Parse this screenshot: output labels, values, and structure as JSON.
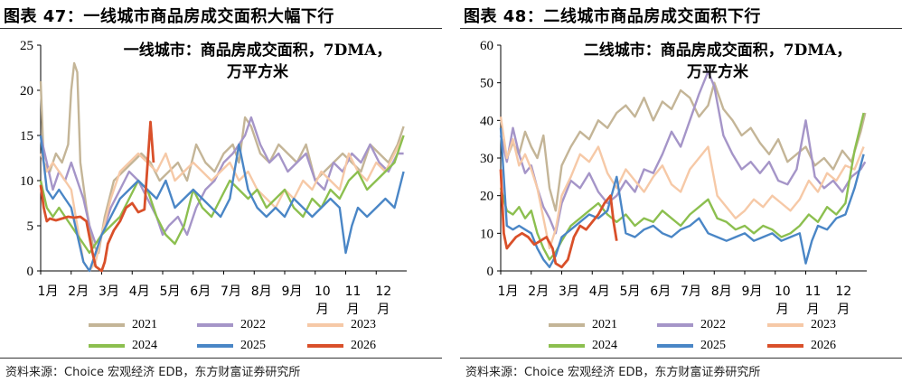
{
  "panels": [
    {
      "figure_title": "图表 47：一线城市商品房成交面积大幅下行",
      "source": "资料来源：Choice 宏观经济 EDB，东方财富证券研究所"
    },
    {
      "figure_title": "图表 48：二线城市商品房成交面积下行",
      "source": "资料来源：Choice 宏观经济 EDB，东方财富证券研究所"
    }
  ],
  "chart_data": [
    {
      "type": "line",
      "title": "一线城市：商品房成交面积，7DMA，",
      "subtitle": "万平方米",
      "ylim": [
        0,
        25
      ],
      "yticks": [
        0,
        5,
        10,
        15,
        20,
        25
      ],
      "xlim": [
        0,
        12
      ],
      "xtick_labels": [
        "1月",
        "2月",
        "3月",
        "4月",
        "5月",
        "6月",
        "7月",
        "8月",
        "9月",
        "10月",
        "11月",
        "12月"
      ],
      "grid": false,
      "legend_position": "bottom",
      "series": [
        {
          "name": "2021",
          "color": "#c4b597",
          "x": [
            0,
            0.1,
            0.3,
            0.5,
            0.7,
            0.9,
            1.0,
            1.1,
            1.2,
            1.3,
            1.5,
            1.7,
            1.9,
            2.1,
            2.4,
            2.7,
            3.0,
            3.3,
            3.6,
            3.9,
            4.2,
            4.5,
            4.8,
            5.1,
            5.4,
            5.7,
            6.0,
            6.3,
            6.5,
            6.7,
            6.9,
            7.2,
            7.5,
            7.8,
            8.1,
            8.4,
            8.7,
            9.0,
            9.3,
            9.6,
            9.9,
            10.2,
            10.5,
            10.8,
            11.1,
            11.4,
            11.7,
            11.9
          ],
          "y": [
            21,
            12,
            11,
            13,
            12,
            14,
            20,
            23,
            22,
            12,
            7,
            3,
            2,
            6,
            10,
            11,
            12,
            13,
            12,
            10,
            11,
            12,
            10,
            14,
            12,
            11,
            13,
            14,
            12,
            17,
            16,
            13,
            12,
            14,
            13,
            12,
            14,
            10,
            11,
            12,
            13,
            12,
            11,
            14,
            13,
            12,
            14,
            16
          ]
        },
        {
          "name": "2022",
          "color": "#a595c8",
          "x": [
            0,
            0.2,
            0.4,
            0.6,
            0.8,
            1.0,
            1.2,
            1.4,
            1.6,
            1.8,
            2.0,
            2.3,
            2.6,
            2.9,
            3.2,
            3.5,
            3.8,
            4.0,
            4.2,
            4.5,
            4.8,
            5.1,
            5.4,
            5.7,
            6.0,
            6.3,
            6.5,
            6.7,
            6.9,
            7.2,
            7.5,
            7.8,
            8.1,
            8.4,
            8.7,
            9.0,
            9.3,
            9.6,
            9.9,
            10.2,
            10.5,
            10.8,
            11.1,
            11.4,
            11.7,
            11.9
          ],
          "y": [
            15,
            12,
            9,
            11,
            10,
            12,
            10,
            8,
            5,
            3,
            4,
            7,
            9,
            11,
            10,
            8,
            6,
            4,
            5,
            6,
            4,
            7,
            9,
            10,
            12,
            13,
            14,
            15,
            17,
            14,
            12,
            13,
            11,
            12,
            13,
            10,
            9,
            12,
            11,
            13,
            12,
            14,
            12,
            11,
            13,
            13
          ]
        },
        {
          "name": "2023",
          "color": "#f6c9a7",
          "x": [
            0,
            0.2,
            0.4,
            0.6,
            0.8,
            1.0,
            1.2,
            1.4,
            1.6,
            1.8,
            2.0,
            2.3,
            2.6,
            2.9,
            3.2,
            3.5,
            3.8,
            4.1,
            4.4,
            4.7,
            5.0,
            5.3,
            5.6,
            5.9,
            6.2,
            6.5,
            6.8,
            7.1,
            7.4,
            7.7,
            8.0,
            8.3,
            8.6,
            8.9,
            9.2,
            9.5,
            9.8,
            10.1,
            10.4,
            10.7,
            11.0,
            11.3,
            11.6,
            11.9
          ],
          "y": [
            13,
            11,
            12,
            11,
            10,
            9,
            5,
            1,
            0,
            1,
            4,
            8,
            11,
            12,
            13,
            12,
            11,
            13,
            10,
            11,
            12,
            11,
            10,
            11,
            12,
            10,
            11,
            9,
            8,
            7,
            9,
            8,
            10,
            9,
            11,
            10,
            9,
            13,
            11,
            10,
            12,
            11,
            13,
            15
          ]
        },
        {
          "name": "2024",
          "color": "#8cbf4f",
          "x": [
            0,
            0.2,
            0.4,
            0.6,
            0.8,
            1.0,
            1.2,
            1.4,
            1.6,
            1.8,
            2.0,
            2.3,
            2.6,
            2.9,
            3.2,
            3.5,
            3.8,
            4.1,
            4.4,
            4.7,
            5.0,
            5.3,
            5.6,
            5.9,
            6.2,
            6.5,
            6.8,
            7.1,
            7.4,
            7.7,
            8.0,
            8.3,
            8.6,
            8.9,
            9.2,
            9.5,
            9.8,
            10.1,
            10.4,
            10.7,
            11.0,
            11.3,
            11.6,
            11.9
          ],
          "y": [
            10,
            7,
            6,
            7,
            6,
            5,
            4,
            3,
            2,
            3,
            4,
            5,
            6,
            8,
            10,
            9,
            6,
            4,
            3,
            5,
            9,
            7,
            6,
            8,
            10,
            9,
            8,
            9,
            7,
            8,
            9,
            7,
            6,
            8,
            7,
            9,
            8,
            10,
            11,
            9,
            10,
            11,
            12,
            15
          ]
        },
        {
          "name": "2025",
          "color": "#4a86c6",
          "x": [
            0,
            0.2,
            0.4,
            0.6,
            0.8,
            1.0,
            1.2,
            1.4,
            1.6,
            1.8,
            2.0,
            2.3,
            2.6,
            2.9,
            3.2,
            3.5,
            3.8,
            4.1,
            4.4,
            4.7,
            5.0,
            5.3,
            5.6,
            5.9,
            6.2,
            6.5,
            6.8,
            7.1,
            7.4,
            7.7,
            8.0,
            8.3,
            8.6,
            8.9,
            9.2,
            9.5,
            9.8,
            10.0,
            10.2,
            10.4,
            10.7,
            11.0,
            11.3,
            11.6,
            11.9
          ],
          "y": [
            15,
            9,
            8,
            9,
            8,
            7,
            4,
            1,
            0,
            2,
            4,
            6,
            8,
            9,
            10,
            9,
            8,
            10,
            7,
            8,
            9,
            8,
            7,
            6,
            8,
            14,
            9,
            7,
            6,
            7,
            6,
            8,
            7,
            6,
            7,
            8,
            7,
            2,
            5,
            7,
            6,
            7,
            8,
            7,
            11
          ]
        },
        {
          "name": "2026",
          "color": "#d9502a",
          "x": [
            0,
            0.1,
            0.2,
            0.3,
            0.5,
            0.7,
            0.9,
            1.1,
            1.3,
            1.5,
            1.7,
            1.8,
            2.0,
            2.1,
            2.2,
            2.4,
            2.6,
            2.8,
            3.0,
            3.2,
            3.4,
            3.6,
            3.7
          ],
          "y": [
            9.5,
            7,
            5.5,
            5.8,
            5.6,
            5.8,
            6,
            5.9,
            6,
            5.5,
            2,
            0.5,
            0,
            1,
            3,
            4.5,
            5.5,
            7,
            7.5,
            6.5,
            6.8,
            16.5,
            12
          ]
        }
      ]
    },
    {
      "type": "line",
      "title": "二线城市：商品房成交面积，7DMA，",
      "subtitle": "万平方米",
      "ylim": [
        0,
        60
      ],
      "yticks": [
        0,
        10,
        20,
        30,
        40,
        50,
        60
      ],
      "xlim": [
        0,
        12
      ],
      "xtick_labels": [
        "1月",
        "2月",
        "3月",
        "4月",
        "5月",
        "6月",
        "7月",
        "8月",
        "9月",
        "10月",
        "11月",
        "12月"
      ],
      "grid": false,
      "legend_position": "bottom",
      "series": [
        {
          "name": "2021",
          "color": "#c4b597",
          "x": [
            0,
            0.2,
            0.4,
            0.6,
            0.8,
            1.0,
            1.2,
            1.4,
            1.6,
            1.8,
            2.0,
            2.3,
            2.6,
            2.9,
            3.2,
            3.5,
            3.8,
            4.1,
            4.4,
            4.7,
            5.0,
            5.3,
            5.6,
            5.9,
            6.2,
            6.5,
            6.8,
            7.0,
            7.3,
            7.6,
            7.9,
            8.2,
            8.5,
            8.8,
            9.1,
            9.4,
            9.7,
            10.0,
            10.3,
            10.6,
            10.9,
            11.2,
            11.5,
            11.8,
            11.95
          ],
          "y": [
            36,
            30,
            34,
            31,
            37,
            33,
            30,
            36,
            22,
            16,
            28,
            33,
            37,
            35,
            40,
            38,
            42,
            44,
            41,
            46,
            40,
            45,
            43,
            48,
            46,
            41,
            44,
            50,
            43,
            40,
            36,
            38,
            34,
            31,
            35,
            29,
            31,
            33,
            28,
            30,
            27,
            32,
            29,
            37,
            42
          ]
        },
        {
          "name": "2022",
          "color": "#a595c8",
          "x": [
            0,
            0.2,
            0.4,
            0.6,
            0.8,
            1.0,
            1.2,
            1.4,
            1.6,
            1.8,
            2.0,
            2.3,
            2.6,
            2.9,
            3.2,
            3.5,
            3.8,
            4.1,
            4.4,
            4.7,
            5.0,
            5.3,
            5.6,
            5.9,
            6.2,
            6.5,
            6.8,
            7.0,
            7.3,
            7.6,
            7.9,
            8.2,
            8.5,
            8.8,
            9.1,
            9.4,
            9.7,
            10.0,
            10.3,
            10.6,
            10.9,
            11.2,
            11.5,
            11.8,
            11.95
          ],
          "y": [
            36,
            29,
            38,
            31,
            26,
            28,
            22,
            17,
            14,
            10,
            18,
            24,
            22,
            26,
            21,
            18,
            20,
            24,
            21,
            27,
            26,
            31,
            37,
            33,
            40,
            47,
            53,
            49,
            36,
            31,
            27,
            29,
            26,
            29,
            24,
            23,
            27,
            40,
            25,
            22,
            24,
            21,
            25,
            27,
            29
          ]
        },
        {
          "name": "2023",
          "color": "#f6c9a7",
          "x": [
            0,
            0.2,
            0.4,
            0.6,
            0.8,
            1.0,
            1.2,
            1.4,
            1.6,
            1.8,
            2.0,
            2.3,
            2.6,
            2.9,
            3.2,
            3.5,
            3.8,
            4.1,
            4.4,
            4.7,
            5.0,
            5.3,
            5.6,
            5.9,
            6.2,
            6.5,
            6.8,
            7.1,
            7.4,
            7.7,
            8.0,
            8.3,
            8.6,
            8.9,
            9.2,
            9.5,
            9.8,
            10.1,
            10.4,
            10.7,
            11.0,
            11.3,
            11.6,
            11.9
          ],
          "y": [
            41,
            30,
            35,
            28,
            31,
            27,
            22,
            14,
            6,
            11,
            20,
            25,
            31,
            29,
            33,
            26,
            22,
            27,
            24,
            21,
            25,
            28,
            23,
            21,
            27,
            30,
            33,
            20,
            17,
            14,
            16,
            19,
            17,
            20,
            18,
            16,
            19,
            24,
            21,
            26,
            24,
            28,
            27,
            33
          ]
        },
        {
          "name": "2024",
          "color": "#8cbf4f",
          "x": [
            0,
            0.2,
            0.4,
            0.6,
            0.8,
            1.0,
            1.2,
            1.4,
            1.6,
            1.8,
            2.0,
            2.3,
            2.6,
            2.9,
            3.2,
            3.5,
            3.8,
            4.1,
            4.4,
            4.7,
            5.0,
            5.3,
            5.6,
            5.9,
            6.2,
            6.5,
            6.8,
            7.1,
            7.4,
            7.7,
            8.0,
            8.3,
            8.6,
            8.9,
            9.2,
            9.5,
            9.8,
            10.1,
            10.4,
            10.7,
            11.0,
            11.3,
            11.6,
            11.9
          ],
          "y": [
            22,
            16,
            15,
            17,
            14,
            16,
            10,
            6,
            3,
            5,
            8,
            12,
            14,
            16,
            18,
            15,
            13,
            15,
            12,
            14,
            13,
            16,
            14,
            12,
            15,
            17,
            19,
            14,
            13,
            11,
            12,
            10,
            12,
            11,
            9,
            10,
            12,
            15,
            13,
            17,
            15,
            18,
            32,
            42
          ]
        },
        {
          "name": "2025",
          "color": "#4a86c6",
          "x": [
            0,
            0.2,
            0.4,
            0.6,
            0.8,
            1.0,
            1.2,
            1.4,
            1.6,
            1.8,
            2.0,
            2.3,
            2.6,
            2.9,
            3.2,
            3.5,
            3.8,
            4.1,
            4.4,
            4.7,
            5.0,
            5.3,
            5.6,
            5.9,
            6.2,
            6.5,
            6.8,
            7.1,
            7.4,
            7.7,
            8.0,
            8.3,
            8.6,
            8.9,
            9.2,
            9.5,
            9.8,
            10.0,
            10.2,
            10.4,
            10.7,
            11.0,
            11.3,
            11.6,
            11.9
          ],
          "y": [
            38,
            12,
            11,
            12,
            11,
            10,
            6,
            3,
            1,
            4,
            9,
            11,
            13,
            15,
            14,
            16,
            25,
            10,
            9,
            11,
            12,
            10,
            9,
            11,
            12,
            14,
            10,
            9,
            8,
            9,
            10,
            8,
            9,
            10,
            8,
            9,
            10,
            2,
            8,
            12,
            11,
            14,
            15,
            22,
            31
          ]
        },
        {
          "name": "2026",
          "color": "#d9502a",
          "x": [
            0,
            0.1,
            0.2,
            0.3,
            0.5,
            0.7,
            0.9,
            1.1,
            1.3,
            1.5,
            1.7,
            1.8,
            2.0,
            2.2,
            2.4,
            2.6,
            2.8,
            3.0,
            3.2,
            3.4,
            3.6,
            3.7,
            3.8
          ],
          "y": [
            27,
            10,
            6,
            7,
            9,
            10,
            9,
            7,
            8,
            9,
            6,
            2,
            1,
            3,
            9,
            12,
            11,
            13,
            15,
            18,
            20,
            13,
            8
          ]
        }
      ]
    }
  ]
}
